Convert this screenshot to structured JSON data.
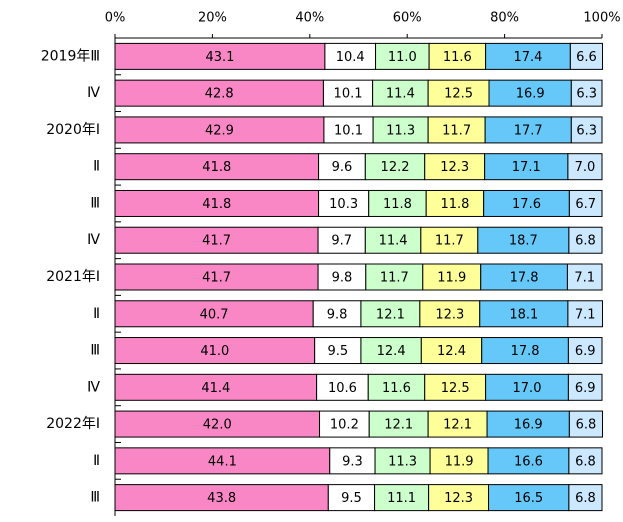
{
  "chart_data": {
    "type": "stacked-bar-horizontal",
    "categories": [
      "2019年Ⅲ",
      "Ⅳ",
      "2020年Ⅰ",
      "Ⅱ",
      "Ⅲ",
      "Ⅳ",
      "2021年Ⅰ",
      "Ⅱ",
      "Ⅲ",
      "Ⅳ",
      "2022年Ⅰ",
      "Ⅱ",
      "Ⅲ"
    ],
    "series": [
      {
        "color": "#f987c5",
        "values": [
          43.1,
          42.8,
          42.9,
          41.8,
          41.8,
          41.7,
          41.7,
          40.7,
          41.0,
          41.4,
          42.0,
          44.1,
          43.8
        ],
        "value_labels": [
          "43.1",
          "42.8",
          "42.9",
          "41.8",
          "41.8",
          "41.7",
          "41.7",
          "40.7",
          "41.0",
          "41.4",
          "42.0",
          "44.1",
          "43.8"
        ]
      },
      {
        "color": "#ffffff",
        "values": [
          10.4,
          10.1,
          10.1,
          9.6,
          10.3,
          9.7,
          9.8,
          9.8,
          9.5,
          10.6,
          10.2,
          9.3,
          9.5
        ],
        "value_labels": [
          "10.4",
          "10.1",
          "10.1",
          "9.6",
          "10.3",
          "9.7",
          "9.8",
          "9.8",
          "9.5",
          "10.6",
          "10.2",
          "9.3",
          "9.5"
        ]
      },
      {
        "color": "#ccffcc",
        "values": [
          11.0,
          11.4,
          11.3,
          12.2,
          11.8,
          11.4,
          11.7,
          12.1,
          12.4,
          11.6,
          12.1,
          11.3,
          11.1
        ],
        "value_labels": [
          "11.0",
          "11.4",
          "11.3",
          "12.2",
          "11.8",
          "11.4",
          "11.7",
          "12.1",
          "12.4",
          "11.6",
          "12.1",
          "11.3",
          "11.1"
        ]
      },
      {
        "color": "#ffff99",
        "values": [
          11.6,
          12.5,
          11.7,
          12.3,
          11.8,
          11.7,
          11.9,
          12.3,
          12.4,
          12.5,
          12.1,
          11.9,
          12.3
        ],
        "value_labels": [
          "11.6",
          "12.5",
          "11.7",
          "12.3",
          "11.8",
          "11.7",
          "11.9",
          "12.3",
          "12.4",
          "12.5",
          "12.1",
          "11.9",
          "12.3"
        ]
      },
      {
        "color": "#66c8f8",
        "values": [
          17.4,
          16.9,
          17.7,
          17.1,
          17.6,
          18.7,
          17.8,
          18.1,
          17.8,
          17.0,
          16.9,
          16.6,
          16.5
        ],
        "value_labels": [
          "17.4",
          "16.9",
          "17.7",
          "17.1",
          "17.6",
          "18.7",
          "17.8",
          "18.1",
          "17.8",
          "17.0",
          "16.9",
          "16.6",
          "16.5"
        ]
      },
      {
        "color": "#cce8ff",
        "values": [
          6.6,
          6.3,
          6.3,
          7.0,
          6.7,
          6.8,
          7.1,
          7.1,
          6.9,
          6.9,
          6.8,
          6.8,
          6.8
        ],
        "value_labels": [
          "6.6",
          "6.3",
          "6.3",
          "7.0",
          "6.7",
          "6.8",
          "7.1",
          "7.1",
          "6.9",
          "6.9",
          "6.8",
          "6.8",
          "6.8"
        ]
      }
    ],
    "xlim": [
      0,
      100
    ],
    "xticks": [
      {
        "value": 0,
        "label": "0%"
      },
      {
        "value": 20,
        "label": "20%"
      },
      {
        "value": 40,
        "label": "40%"
      },
      {
        "value": 60,
        "label": "60%"
      },
      {
        "value": 80,
        "label": "80%"
      },
      {
        "value": 100,
        "label": "100%"
      }
    ]
  }
}
